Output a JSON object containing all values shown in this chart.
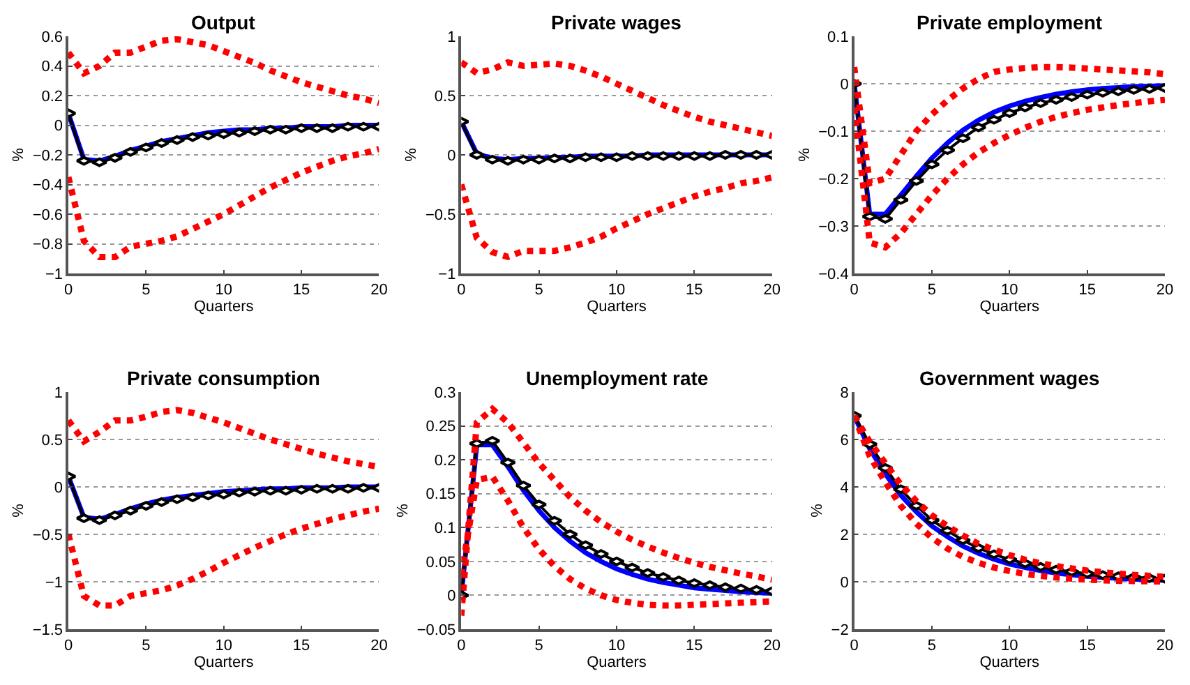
{
  "chart_data": [
    {
      "type": "line",
      "title": "Output",
      "xlabel": "Quarters",
      "ylabel": "%",
      "x": [
        0,
        1,
        2,
        3,
        4,
        5,
        6,
        7,
        8,
        9,
        10,
        11,
        12,
        13,
        14,
        15,
        16,
        17,
        18,
        19,
        20
      ],
      "xlim": [
        0,
        20
      ],
      "xticks": [
        0,
        5,
        10,
        15,
        20
      ],
      "ylim": [
        -1,
        0.6
      ],
      "yticks": [
        -1,
        -0.8,
        -0.6,
        -0.4,
        -0.2,
        0,
        0.2,
        0.4,
        0.6
      ],
      "grid": "y",
      "series": [
        {
          "color": "#0000ff",
          "marker": "none",
          "line_style": "solid",
          "values": [
            0.08,
            -0.23,
            -0.24,
            -0.21,
            -0.17,
            -0.14,
            -0.11,
            -0.09,
            -0.07,
            -0.05,
            -0.04,
            -0.03,
            -0.03,
            -0.02,
            -0.02,
            -0.01,
            -0.01,
            -0.01,
            0,
            0,
            0
          ]
        },
        {
          "color": "#000000",
          "marker": "diamond",
          "line_style": "solid",
          "values": [
            0.08,
            -0.24,
            -0.25,
            -0.22,
            -0.18,
            -0.15,
            -0.12,
            -0.1,
            -0.08,
            -0.07,
            -0.06,
            -0.05,
            -0.04,
            -0.03,
            -0.03,
            -0.02,
            -0.02,
            -0.02,
            -0.01,
            -0.01,
            -0.01
          ]
        },
        {
          "color": "#ff0000",
          "marker": "none",
          "line_style": "dotted",
          "values": [
            0.49,
            0.35,
            0.4,
            0.49,
            0.49,
            0.53,
            0.57,
            0.58,
            0.56,
            0.54,
            0.5,
            0.46,
            0.42,
            0.37,
            0.33,
            0.29,
            0.26,
            0.23,
            0.2,
            0.18,
            0.15
          ]
        },
        {
          "color": "#ff0000",
          "marker": "none",
          "line_style": "dotted",
          "values": [
            -0.35,
            -0.78,
            -0.89,
            -0.89,
            -0.82,
            -0.8,
            -0.78,
            -0.75,
            -0.7,
            -0.65,
            -0.6,
            -0.54,
            -0.48,
            -0.42,
            -0.37,
            -0.32,
            -0.28,
            -0.24,
            -0.21,
            -0.19,
            -0.16
          ]
        }
      ]
    },
    {
      "type": "line",
      "title": "Private wages",
      "xlabel": "Quarters",
      "ylabel": "%",
      "x": [
        0,
        1,
        2,
        3,
        4,
        5,
        6,
        7,
        8,
        9,
        10,
        11,
        12,
        13,
        14,
        15,
        16,
        17,
        18,
        19,
        20
      ],
      "xlim": [
        0,
        20
      ],
      "xticks": [
        0,
        5,
        10,
        15,
        20
      ],
      "ylim": [
        -1,
        1
      ],
      "yticks": [
        -1,
        -0.5,
        0,
        0.5,
        1
      ],
      "grid": "y",
      "series": [
        {
          "color": "#0000ff",
          "marker": "none",
          "line_style": "solid",
          "values": [
            0.28,
            0.01,
            -0.03,
            -0.04,
            -0.03,
            -0.03,
            -0.02,
            -0.02,
            -0.01,
            -0.01,
            -0.01,
            -0.01,
            0,
            0,
            0,
            0,
            0,
            0,
            0,
            0,
            0
          ]
        },
        {
          "color": "#000000",
          "marker": "diamond",
          "line_style": "solid",
          "values": [
            0.28,
            0,
            -0.04,
            -0.05,
            -0.04,
            -0.04,
            -0.03,
            -0.03,
            -0.02,
            -0.02,
            -0.02,
            -0.01,
            -0.01,
            -0.01,
            -0.01,
            -0.01,
            -0.01,
            0,
            0,
            0,
            0
          ]
        },
        {
          "color": "#ff0000",
          "marker": "none",
          "line_style": "dotted",
          "values": [
            0.78,
            0.69,
            0.72,
            0.78,
            0.75,
            0.76,
            0.77,
            0.75,
            0.71,
            0.66,
            0.6,
            0.54,
            0.48,
            0.42,
            0.37,
            0.32,
            0.28,
            0.25,
            0.22,
            0.19,
            0.16
          ]
        },
        {
          "color": "#ff0000",
          "marker": "none",
          "line_style": "dotted",
          "values": [
            -0.25,
            -0.7,
            -0.82,
            -0.86,
            -0.81,
            -0.81,
            -0.81,
            -0.78,
            -0.74,
            -0.69,
            -0.62,
            -0.56,
            -0.5,
            -0.45,
            -0.4,
            -0.35,
            -0.31,
            -0.28,
            -0.24,
            -0.22,
            -0.19
          ]
        }
      ]
    },
    {
      "type": "line",
      "title": "Private employment",
      "xlabel": "Quarters",
      "ylabel": "%",
      "x": [
        0,
        1,
        2,
        3,
        4,
        5,
        6,
        7,
        8,
        9,
        10,
        11,
        12,
        13,
        14,
        15,
        16,
        17,
        18,
        19,
        20
      ],
      "xlim": [
        0,
        20
      ],
      "xticks": [
        0,
        5,
        10,
        15,
        20
      ],
      "ylim": [
        -0.4,
        0.1
      ],
      "yticks": [
        -0.4,
        -0.3,
        -0.2,
        -0.1,
        0,
        0.1
      ],
      "grid": "y",
      "series": [
        {
          "color": "#0000ff",
          "marker": "none",
          "line_style": "solid",
          "values": [
            0,
            -0.275,
            -0.275,
            -0.235,
            -0.195,
            -0.157,
            -0.125,
            -0.098,
            -0.077,
            -0.06,
            -0.047,
            -0.037,
            -0.029,
            -0.022,
            -0.017,
            -0.013,
            -0.01,
            -0.008,
            -0.006,
            -0.005,
            -0.004
          ]
        },
        {
          "color": "#000000",
          "marker": "diamond",
          "line_style": "solid",
          "values": [
            0,
            -0.28,
            -0.285,
            -0.245,
            -0.205,
            -0.17,
            -0.14,
            -0.115,
            -0.092,
            -0.076,
            -0.062,
            -0.05,
            -0.041,
            -0.034,
            -0.028,
            -0.023,
            -0.019,
            -0.016,
            -0.013,
            -0.011,
            -0.009
          ]
        },
        {
          "color": "#ff0000",
          "marker": "none",
          "line_style": "dotted",
          "values": [
            0.035,
            -0.21,
            -0.2,
            -0.15,
            -0.1,
            -0.065,
            -0.035,
            -0.01,
            0.01,
            0.025,
            0.03,
            0.033,
            0.035,
            0.035,
            0.034,
            0.032,
            0.03,
            0.028,
            0.026,
            0.024,
            0.02
          ]
        },
        {
          "color": "#ff0000",
          "marker": "none",
          "line_style": "dotted",
          "values": [
            -0.05,
            -0.335,
            -0.345,
            -0.315,
            -0.275,
            -0.235,
            -0.2,
            -0.17,
            -0.145,
            -0.125,
            -0.108,
            -0.093,
            -0.08,
            -0.07,
            -0.062,
            -0.055,
            -0.05,
            -0.045,
            -0.041,
            -0.037,
            -0.034
          ]
        }
      ]
    },
    {
      "type": "line",
      "title": "Private consumption",
      "xlabel": "Quarters",
      "ylabel": "%",
      "x": [
        0,
        1,
        2,
        3,
        4,
        5,
        6,
        7,
        8,
        9,
        10,
        11,
        12,
        13,
        14,
        15,
        16,
        17,
        18,
        19,
        20
      ],
      "xlim": [
        0,
        20
      ],
      "xticks": [
        0,
        5,
        10,
        15,
        20
      ],
      "ylim": [
        -1.5,
        1
      ],
      "yticks": [
        -1.5,
        -1,
        -0.5,
        0,
        0.5,
        1
      ],
      "grid": "y",
      "series": [
        {
          "color": "#0000ff",
          "marker": "none",
          "line_style": "solid",
          "values": [
            0.11,
            -0.32,
            -0.34,
            -0.29,
            -0.23,
            -0.18,
            -0.14,
            -0.11,
            -0.09,
            -0.07,
            -0.05,
            -0.04,
            -0.03,
            -0.02,
            -0.02,
            -0.01,
            -0.01,
            -0.01,
            0,
            0,
            0
          ]
        },
        {
          "color": "#000000",
          "marker": "diamond",
          "line_style": "solid",
          "values": [
            0.11,
            -0.33,
            -0.35,
            -0.3,
            -0.25,
            -0.2,
            -0.16,
            -0.13,
            -0.11,
            -0.09,
            -0.08,
            -0.06,
            -0.05,
            -0.04,
            -0.04,
            -0.03,
            -0.02,
            -0.02,
            -0.02,
            -0.01,
            -0.01
          ]
        },
        {
          "color": "#ff0000",
          "marker": "none",
          "line_style": "dotted",
          "values": [
            0.7,
            0.48,
            0.58,
            0.7,
            0.7,
            0.74,
            0.79,
            0.81,
            0.78,
            0.73,
            0.68,
            0.62,
            0.56,
            0.5,
            0.45,
            0.4,
            0.35,
            0.31,
            0.27,
            0.24,
            0.21
          ]
        },
        {
          "color": "#ff0000",
          "marker": "none",
          "line_style": "dotted",
          "values": [
            -0.5,
            -1.15,
            -1.25,
            -1.25,
            -1.15,
            -1.12,
            -1.09,
            -1.04,
            -0.97,
            -0.89,
            -0.8,
            -0.72,
            -0.64,
            -0.57,
            -0.5,
            -0.44,
            -0.39,
            -0.34,
            -0.3,
            -0.26,
            -0.23
          ]
        }
      ]
    },
    {
      "type": "line",
      "title": "Unemployment rate",
      "xlabel": "Quarters",
      "ylabel": "%",
      "x": [
        0,
        1,
        2,
        3,
        4,
        5,
        6,
        7,
        8,
        9,
        10,
        11,
        12,
        13,
        14,
        15,
        16,
        17,
        18,
        19,
        20
      ],
      "xlim": [
        0,
        20
      ],
      "xticks": [
        0,
        5,
        10,
        15,
        20
      ],
      "ylim": [
        -0.05,
        0.3
      ],
      "yticks": [
        -0.05,
        0,
        0.05,
        0.1,
        0.15,
        0.2,
        0.25,
        0.3
      ],
      "grid": "y",
      "series": [
        {
          "color": "#0000ff",
          "marker": "none",
          "line_style": "solid",
          "values": [
            0,
            0.222,
            0.222,
            0.19,
            0.155,
            0.125,
            0.1,
            0.08,
            0.063,
            0.05,
            0.039,
            0.031,
            0.024,
            0.019,
            0.015,
            0.011,
            0.009,
            0.007,
            0.005,
            0.004,
            0.003
          ]
        },
        {
          "color": "#000000",
          "marker": "diamond",
          "line_style": "solid",
          "values": [
            0,
            0.224,
            0.228,
            0.196,
            0.162,
            0.134,
            0.11,
            0.09,
            0.074,
            0.061,
            0.05,
            0.041,
            0.033,
            0.027,
            0.022,
            0.018,
            0.015,
            0.012,
            0.01,
            0.008,
            0.006
          ]
        },
        {
          "color": "#ff0000",
          "marker": "none",
          "line_style": "dotted",
          "values": [
            -0.03,
            0.255,
            0.275,
            0.255,
            0.225,
            0.195,
            0.17,
            0.145,
            0.125,
            0.108,
            0.094,
            0.082,
            0.072,
            0.063,
            0.055,
            0.048,
            0.042,
            0.037,
            0.032,
            0.028,
            0.023
          ]
        },
        {
          "color": "#ff0000",
          "marker": "none",
          "line_style": "dotted",
          "values": [
            0.03,
            0.17,
            0.175,
            0.14,
            0.1,
            0.068,
            0.043,
            0.024,
            0.01,
            0.0,
            -0.007,
            -0.011,
            -0.014,
            -0.015,
            -0.015,
            -0.014,
            -0.013,
            -0.012,
            -0.011,
            -0.01,
            -0.009
          ]
        }
      ]
    },
    {
      "type": "line",
      "title": "Government wages",
      "xlabel": "Quarters",
      "ylabel": "%",
      "x": [
        0,
        1,
        2,
        3,
        4,
        5,
        6,
        7,
        8,
        9,
        10,
        11,
        12,
        13,
        14,
        15,
        16,
        17,
        18,
        19,
        20
      ],
      "xlim": [
        0,
        20
      ],
      "xticks": [
        0,
        5,
        10,
        15,
        20
      ],
      "ylim": [
        -2,
        8
      ],
      "yticks": [
        -2,
        0,
        2,
        4,
        6,
        8
      ],
      "grid": "y",
      "series": [
        {
          "color": "#0000ff",
          "marker": "none",
          "line_style": "solid",
          "values": [
            7.0,
            5.6,
            4.55,
            3.65,
            2.95,
            2.35,
            1.9,
            1.5,
            1.2,
            0.95,
            0.75,
            0.6,
            0.47,
            0.37,
            0.29,
            0.23,
            0.18,
            0.14,
            0.11,
            0.08,
            0.06
          ]
        },
        {
          "color": "#000000",
          "marker": "diamond",
          "line_style": "solid",
          "values": [
            7.0,
            5.8,
            4.8,
            3.9,
            3.2,
            2.6,
            2.15,
            1.75,
            1.42,
            1.16,
            0.94,
            0.77,
            0.63,
            0.51,
            0.42,
            0.34,
            0.28,
            0.23,
            0.19,
            0.15,
            0.13
          ]
        },
        {
          "color": "#ff0000",
          "marker": "none",
          "line_style": "dotted",
          "values": [
            7.0,
            5.9,
            5.0,
            4.1,
            3.4,
            2.8,
            2.35,
            1.95,
            1.6,
            1.35,
            1.12,
            0.93,
            0.78,
            0.66,
            0.56,
            0.47,
            0.4,
            0.34,
            0.29,
            0.25,
            0.21
          ]
        },
        {
          "color": "#ff0000",
          "marker": "none",
          "line_style": "dotted",
          "values": [
            7.0,
            5.3,
            4.2,
            3.2,
            2.45,
            1.85,
            1.4,
            1.05,
            0.8,
            0.6,
            0.45,
            0.33,
            0.25,
            0.18,
            0.13,
            0.09,
            0.06,
            0.04,
            0.03,
            0.02,
            0.01
          ]
        }
      ]
    }
  ]
}
